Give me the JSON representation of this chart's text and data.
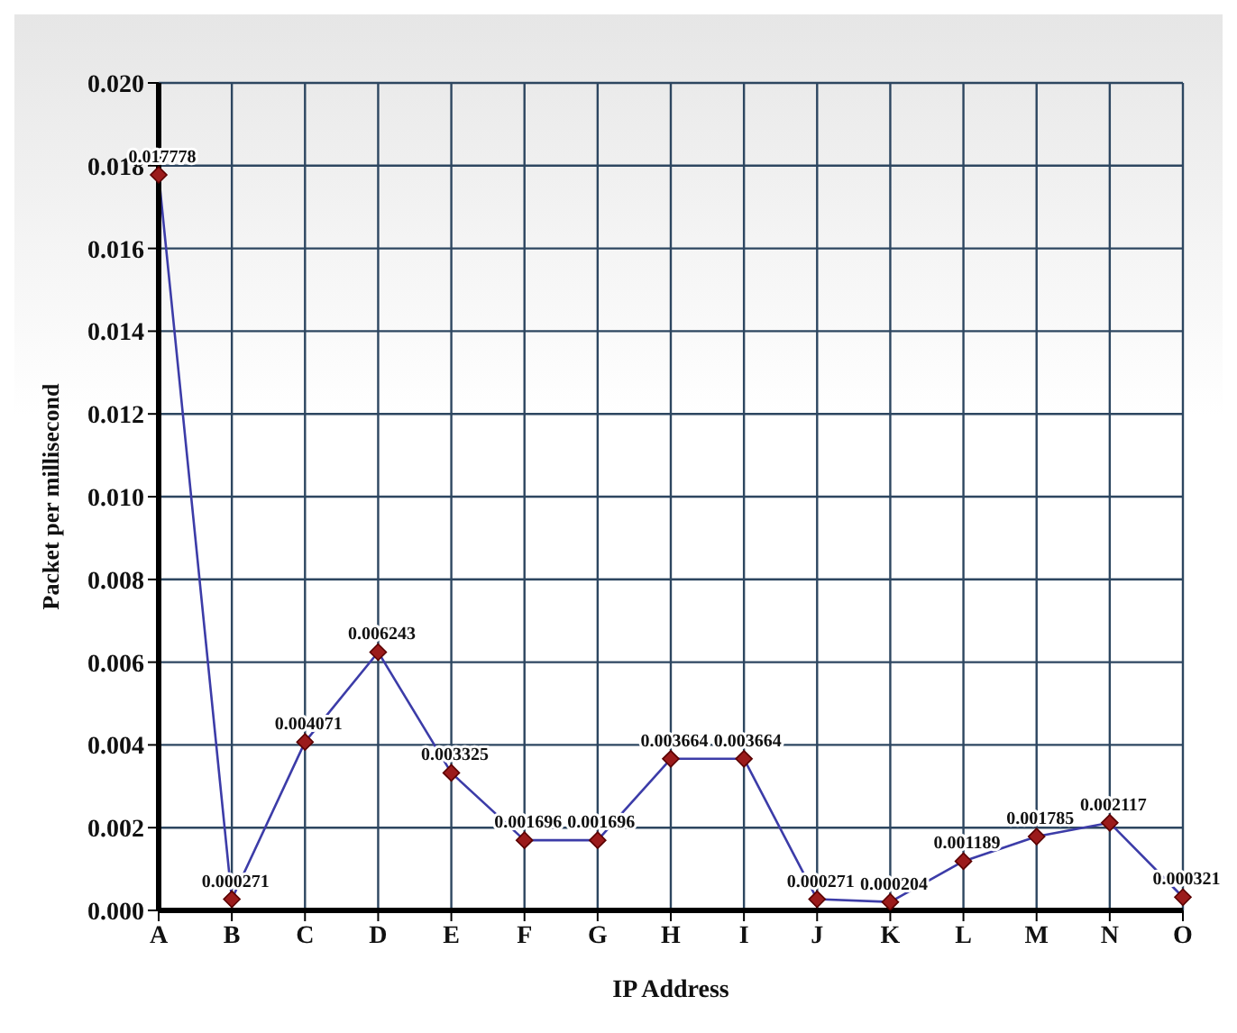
{
  "chart_data": {
    "type": "line",
    "xlabel": "IP Address",
    "ylabel": "Packet per millisecond",
    "categories": [
      "A",
      "B",
      "C",
      "D",
      "E",
      "F",
      "G",
      "H",
      "I",
      "J",
      "K",
      "L",
      "M",
      "N",
      "O"
    ],
    "series": [
      {
        "color": "#3c3ca8",
        "values": [
          0.017778,
          0.000271,
          0.004071,
          0.006243,
          0.003325,
          0.001696,
          0.001696,
          0.003664,
          0.003664,
          0.000271,
          0.000204,
          0.001189,
          0.001785,
          0.002117,
          0.000321
        ]
      }
    ],
    "ylim": [
      0,
      0.02
    ],
    "yticks": [
      {
        "value": 0,
        "label": "0.000"
      },
      {
        "value": 0.002,
        "label": "0.002"
      },
      {
        "value": 0.004,
        "label": "0.004"
      },
      {
        "value": 0.006,
        "label": "0.006"
      },
      {
        "value": 0.008,
        "label": "0.008"
      },
      {
        "value": 0.01,
        "label": "0.010"
      },
      {
        "value": 0.012,
        "label": "0.012"
      },
      {
        "value": 0.014,
        "label": "0.014"
      },
      {
        "value": 0.016,
        "label": "0.016"
      },
      {
        "value": 0.018,
        "label": "0.018"
      },
      {
        "value": 0.02,
        "label": "0.020"
      }
    ],
    "grid": true,
    "marker": "diamond",
    "data_labels": true,
    "legend": false
  }
}
